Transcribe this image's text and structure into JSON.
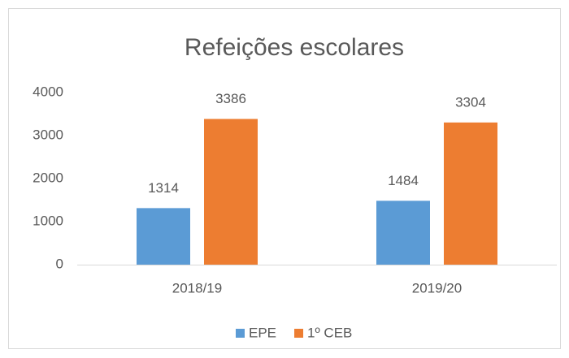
{
  "chart_data": {
    "type": "bar",
    "title": "Refeições escolares",
    "categories": [
      "2018/19",
      "2019/20"
    ],
    "series": [
      {
        "name": "EPE",
        "color": "#5b9bd5",
        "values": [
          1314,
          1484
        ]
      },
      {
        "name": "1º CEB",
        "color": "#ed7d31",
        "values": [
          3386,
          3304
        ]
      }
    ],
    "ylim": [
      0,
      4000
    ],
    "yticks": [
      0,
      1000,
      2000,
      3000,
      4000
    ],
    "grid": false,
    "legend": "bottom"
  }
}
